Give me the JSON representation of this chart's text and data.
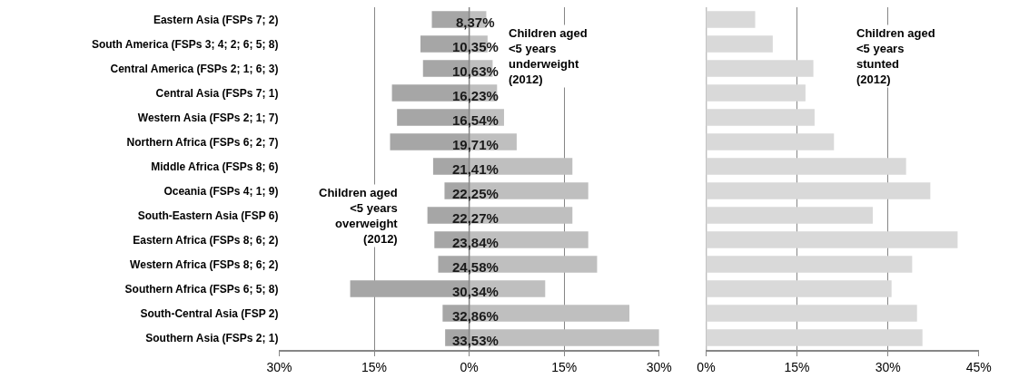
{
  "chart_data": [
    {
      "type": "bar",
      "orientation": "horizontal",
      "stacked": true,
      "grid": "x",
      "legend": false,
      "categories": [
        "Eastern Asia (FSPs 7; 2)",
        "South America (FSPs 3; 4; 2; 6; 5; 8)",
        "Central America (FSPs 2; 1; 6; 3)",
        "Central Asia (FSPs 7; 1)",
        "Western Asia (FSPs 2; 1; 7)",
        "Northern Africa (FSPs 6; 2; 7)",
        "Middle Africa (FSPs 8; 6)",
        "Oceania (FSPs 4; 1; 9)",
        "South-Eastern Asia (FSP 6)",
        "Eastern Africa (FSPs 8; 6; 2)",
        "Western Africa (FSPs 8; 6; 2)",
        "Southern Africa (FSPs 6; 5; 8)",
        "South-Central Asia (FSP 2)",
        "Southern Asia (FSPs 2; 1)"
      ],
      "series": [
        {
          "name": "Children aged\n<5 years\noverweight\n(2012)",
          "color": "#a6a6a6",
          "values": [
            -5.9,
            -7.7,
            -7.3,
            -12.2,
            -11.4,
            -12.5,
            -5.7,
            -3.9,
            -6.6,
            -5.5,
            -4.9,
            -18.8,
            -4.2,
            -3.8
          ]
        },
        {
          "name": "Children aged\n<5 years\nunderweight\n(2012)",
          "color": "#bfbfbf",
          "values": [
            2.7,
            2.9,
            3.7,
            4.4,
            5.5,
            7.5,
            16.3,
            18.8,
            16.3,
            18.8,
            20.2,
            12.0,
            25.3,
            30.0
          ]
        }
      ],
      "xlim": [
        -30,
        30
      ],
      "xticks": [
        {
          "value": -30,
          "label": "30%"
        },
        {
          "value": -15,
          "label": "15%"
        },
        {
          "value": 0,
          "label": "0%"
        },
        {
          "value": 15,
          "label": "15%"
        },
        {
          "value": 30,
          "label": "30%"
        }
      ],
      "annotations": [
        {
          "text": "8,37%",
          "y": "Eastern Asia (FSPs 7; 2)"
        },
        {
          "text": "10,35%",
          "y": "South America (FSPs 3; 4; 2; 6; 5; 8)"
        },
        {
          "text": "10,63%",
          "y": "Central America (FSPs 2; 1; 6; 3)"
        },
        {
          "text": "16,23%",
          "y": "Central Asia (FSPs 7; 1)"
        },
        {
          "text": "16,54%",
          "y": "Western Asia (FSPs 2; 1; 7)"
        },
        {
          "text": "19,71%",
          "y": "Northern Africa (FSPs 6; 2; 7)"
        },
        {
          "text": "21,41%",
          "y": "Middle Africa (FSPs 8; 6)"
        },
        {
          "text": "22,25%",
          "y": "Oceania (FSPs 4; 1; 9)"
        },
        {
          "text": "22,27%",
          "y": "South-Eastern Asia (FSP 6)"
        },
        {
          "text": "23,84%",
          "y": "Eastern Africa (FSPs 8; 6; 2)"
        },
        {
          "text": "24,58%",
          "y": "Western Africa (FSPs 8; 6; 2)"
        },
        {
          "text": "30,34%",
          "y": "Southern Africa (FSPs 6; 5; 8)"
        },
        {
          "text": "32,86%",
          "y": "South-Central Asia (FSP 2)"
        },
        {
          "text": "33,53%",
          "y": "Southern Asia (FSPs 2; 1)"
        }
      ]
    },
    {
      "type": "bar",
      "orientation": "horizontal",
      "grid": "x",
      "legend": false,
      "tick_labels": "x",
      "categories": [
        null,
        null,
        null,
        null,
        null,
        null,
        null,
        null,
        null,
        null,
        null,
        null,
        null,
        null
      ],
      "series": [
        {
          "name": "Children aged\n<5 years\nstunted\n(2012)",
          "color": "#d9d9d9",
          "values": [
            8.1,
            11.0,
            17.7,
            16.4,
            17.9,
            21.1,
            33.0,
            37.0,
            27.5,
            41.5,
            34.0,
            30.6,
            34.8,
            35.7
          ]
        }
      ],
      "xlim": [
        0,
        45
      ],
      "xticks": [
        {
          "value": 0,
          "label": "0%"
        },
        {
          "value": 15,
          "label": "15%"
        },
        {
          "value": 30,
          "label": "30%"
        },
        {
          "value": 45,
          "label": "45%"
        }
      ]
    }
  ]
}
